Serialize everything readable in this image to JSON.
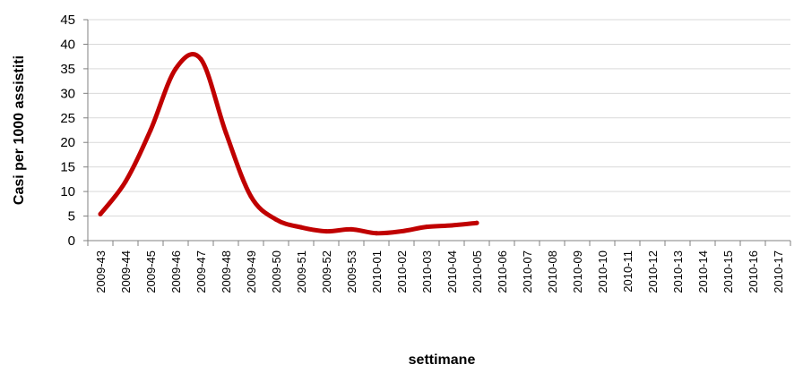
{
  "chart_data": {
    "type": "line",
    "title": "",
    "xlabel": "settimane",
    "ylabel": "Casi per 1000 assistiti",
    "ylim": [
      0,
      45
    ],
    "yticks": [
      0,
      5,
      10,
      15,
      20,
      25,
      30,
      35,
      40,
      45
    ],
    "grid": true,
    "legend": "none",
    "colors": {
      "line": "#c00000",
      "grid": "#d9d9d9",
      "axis": "#808080"
    },
    "categories": [
      "2009-43",
      "2009-44",
      "2009-45",
      "2009-46",
      "2009-47",
      "2009-48",
      "2009-49",
      "2009-50",
      "2009-51",
      "2009-52",
      "2009-53",
      "2010-01",
      "2010-02",
      "2010-03",
      "2010-04",
      "2010-05",
      "2010-06",
      "2010-07",
      "2010-08",
      "2010-09",
      "2010-10",
      "2010-11",
      "2010-12",
      "2010-13",
      "2010-14",
      "2010-15",
      "2010-16",
      "2010-17"
    ],
    "series": [
      {
        "values": [
          5.4,
          12.0,
          22.5,
          35.0,
          37.0,
          22.0,
          9.0,
          4.3,
          2.7,
          1.9,
          2.3,
          1.5,
          1.9,
          2.8,
          3.1,
          3.6,
          null,
          null,
          null,
          null,
          null,
          null,
          null,
          null,
          null,
          null,
          null,
          null
        ]
      }
    ]
  }
}
